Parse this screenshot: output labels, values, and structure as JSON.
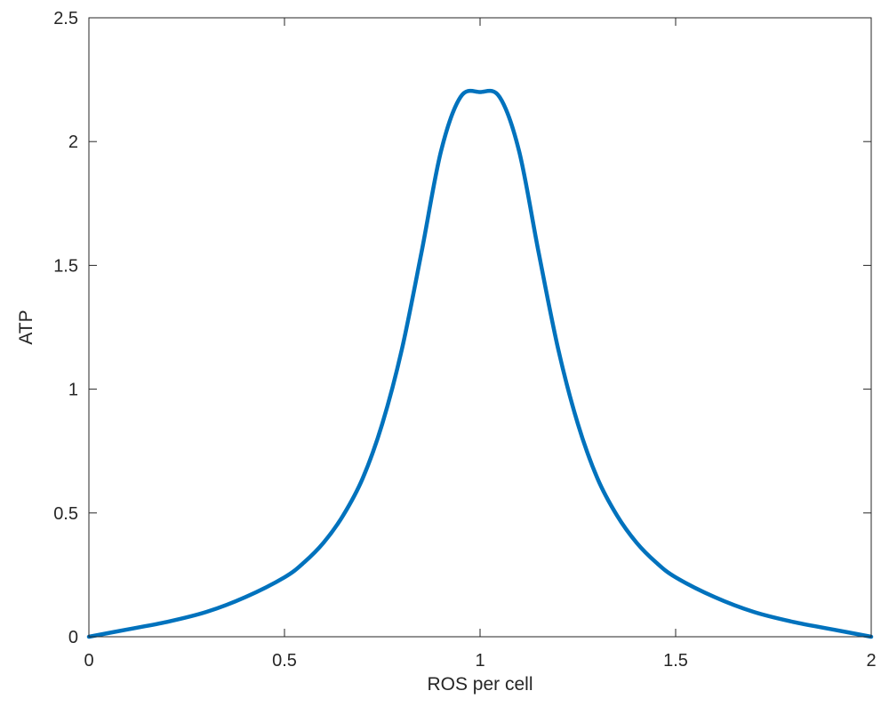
{
  "chart_data": {
    "type": "line",
    "title": "",
    "xlabel": "ROS per cell",
    "ylabel": "ATP",
    "xlim": [
      0,
      2
    ],
    "ylim": [
      0,
      2.5
    ],
    "x_ticks": [
      "0",
      "0.5",
      "1",
      "1.5",
      "2"
    ],
    "y_ticks": [
      "0",
      "0.5",
      "1",
      "1.5",
      "2",
      "2.5"
    ],
    "grid": false,
    "legend": "none",
    "series": [
      {
        "color": "#0072bd",
        "x": [
          0,
          0.1,
          0.2,
          0.3,
          0.4,
          0.5,
          0.55,
          0.6,
          0.65,
          0.7,
          0.75,
          0.8,
          0.85,
          0.9,
          0.95,
          1.0,
          1.05,
          1.1,
          1.15,
          1.2,
          1.25,
          1.3,
          1.35,
          1.4,
          1.45,
          1.5,
          1.6,
          1.7,
          1.8,
          1.9,
          2.0
        ],
        "y": [
          0,
          0.03,
          0.06,
          0.1,
          0.16,
          0.24,
          0.3,
          0.38,
          0.49,
          0.64,
          0.86,
          1.16,
          1.55,
          1.96,
          2.18,
          2.2,
          2.18,
          1.96,
          1.55,
          1.16,
          0.86,
          0.64,
          0.49,
          0.38,
          0.3,
          0.24,
          0.16,
          0.1,
          0.06,
          0.03,
          0
        ]
      }
    ]
  }
}
